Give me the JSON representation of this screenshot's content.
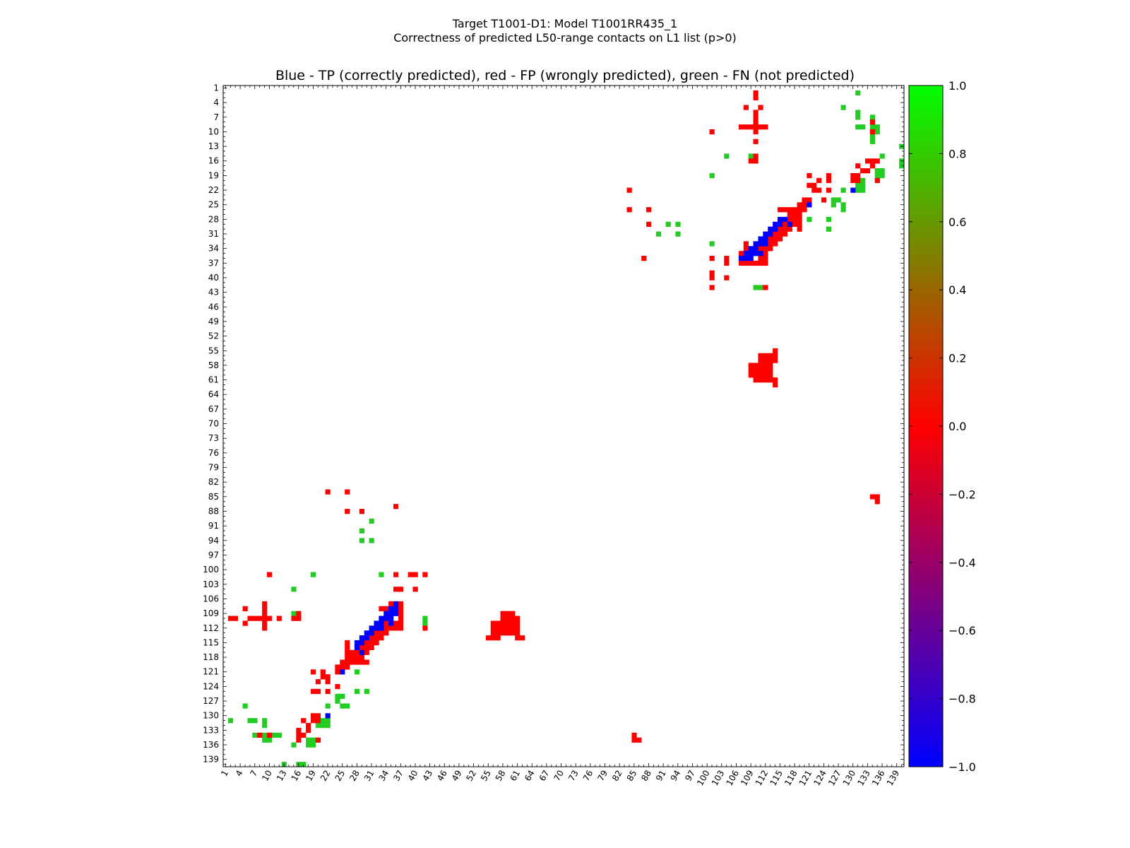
{
  "chart_data": {
    "type": "heatmap",
    "title": "Target T1001-D1: Model T1001RR435_1",
    "subtitle": "Correctness of predicted L50-range contacts on L1 list (p>0)",
    "plot_title": "Blue - TP (correctly predicted), red - FP (wrongly predicted), green - FN (not predicted)",
    "xlabel": "",
    "ylabel": "",
    "n_residues": 140,
    "axis_ticks": [
      1,
      4,
      7,
      10,
      13,
      16,
      19,
      22,
      25,
      28,
      31,
      34,
      37,
      40,
      43,
      46,
      49,
      52,
      55,
      58,
      61,
      64,
      67,
      70,
      73,
      76,
      79,
      82,
      85,
      88,
      91,
      94,
      97,
      100,
      103,
      106,
      109,
      112,
      115,
      118,
      121,
      124,
      127,
      130,
      133,
      136,
      139
    ],
    "y_tick_labels": [
      "1",
      "4",
      "7",
      "10",
      "13",
      "16",
      "19",
      "22",
      "25",
      "28",
      "31",
      "34",
      "37",
      "40",
      "43",
      "46",
      "49",
      "52",
      "55",
      "58",
      "61",
      "64",
      "67",
      "70",
      "73",
      "76",
      "79",
      "82",
      "85",
      "88",
      "91",
      "94",
      "97",
      "100",
      "103",
      "106",
      "109",
      "112",
      "115",
      "118",
      "121",
      "124",
      "127",
      "130",
      "133",
      "136",
      "139"
    ],
    "x_tick_labels": [
      "1",
      "4",
      "7",
      "10",
      "13",
      "16",
      "19",
      "22",
      "25",
      "28",
      "31",
      "34",
      "37",
      "40",
      "43",
      "46",
      "49",
      "52",
      "55",
      "58",
      "61",
      "64",
      "67",
      "70",
      "73",
      "76",
      "79",
      "82",
      "85",
      "88",
      "91",
      "94",
      "97",
      "100",
      "103",
      "106",
      "109",
      "112",
      "115",
      "118",
      "121",
      "124",
      "127",
      "130",
      "133",
      "136",
      "139"
    ],
    "legend": {
      "TP": "blue",
      "FP": "red",
      "FN": "green"
    },
    "colorbar": {
      "range": [
        -1.0,
        1.0
      ],
      "ticks": [
        1.0,
        0.8,
        0.6,
        0.4,
        0.2,
        0.0,
        -0.2,
        -0.4,
        -0.6,
        -0.8,
        -1.0
      ],
      "tick_labels": [
        "1.0",
        "0.8",
        "0.6",
        "0.4",
        "0.2",
        "0.0",
        "−0.2",
        "−0.4",
        "−0.6",
        "−0.8",
        "−1.0"
      ],
      "colors": {
        "top": "#00ff00",
        "middle": "#ff0000",
        "bottom": "#0000ff"
      }
    },
    "colors": {
      "TP": "#0000ff",
      "FP": "#ff0000",
      "FN": "#22cc22"
    },
    "contacts_upper": {
      "TP": [
        [
          34,
          109
        ],
        [
          34,
          110
        ],
        [
          35,
          108
        ],
        [
          35,
          109
        ],
        [
          35,
          110
        ],
        [
          35,
          111
        ],
        [
          36,
          108
        ],
        [
          36,
          109
        ],
        [
          33,
          110
        ],
        [
          33,
          111
        ],
        [
          33,
          112
        ],
        [
          32,
          111
        ],
        [
          32,
          112
        ],
        [
          31,
          112
        ],
        [
          31,
          113
        ],
        [
          30,
          113
        ],
        [
          30,
          114
        ],
        [
          29,
          114
        ],
        [
          29,
          115
        ],
        [
          28,
          115
        ],
        [
          28,
          116
        ],
        [
          29,
          117
        ],
        [
          22,
          130
        ],
        [
          25,
          121
        ],
        [
          36,
          107
        ]
      ],
      "FP": [
        [
          2,
          110
        ],
        [
          3,
          110
        ],
        [
          5,
          108
        ],
        [
          5,
          111
        ],
        [
          6,
          110
        ],
        [
          7,
          110
        ],
        [
          8,
          110
        ],
        [
          9,
          107
        ],
        [
          9,
          108
        ],
        [
          9,
          109
        ],
        [
          9,
          110
        ],
        [
          9,
          111
        ],
        [
          9,
          112
        ],
        [
          10,
          110
        ],
        [
          12,
          110
        ],
        [
          15,
          110
        ],
        [
          10,
          101
        ],
        [
          16,
          109
        ],
        [
          16,
          110
        ],
        [
          20,
          123
        ],
        [
          19,
          125
        ],
        [
          20,
          125
        ],
        [
          21,
          122
        ],
        [
          22,
          122
        ],
        [
          22,
          123
        ],
        [
          22,
          125
        ],
        [
          19,
          130
        ],
        [
          20,
          130
        ],
        [
          20,
          131
        ],
        [
          19,
          131
        ],
        [
          18,
          132
        ],
        [
          18,
          133
        ],
        [
          16,
          133
        ],
        [
          16,
          134
        ],
        [
          22,
          84
        ],
        [
          26,
          84
        ],
        [
          26,
          88
        ],
        [
          29,
          88
        ],
        [
          36,
          87
        ],
        [
          36,
          101
        ],
        [
          36,
          104
        ],
        [
          37,
          104
        ],
        [
          39,
          101
        ],
        [
          40,
          101
        ],
        [
          40,
          104
        ],
        [
          42,
          101
        ],
        [
          42,
          112
        ],
        [
          33,
          108
        ],
        [
          34,
          108
        ],
        [
          35,
          107
        ],
        [
          36,
          107
        ],
        [
          37,
          107
        ],
        [
          37,
          108
        ],
        [
          37,
          109
        ],
        [
          37,
          110
        ],
        [
          37,
          111
        ],
        [
          37,
          112
        ],
        [
          36,
          111
        ],
        [
          36,
          112
        ],
        [
          35,
          112
        ],
        [
          34,
          111
        ],
        [
          34,
          112
        ],
        [
          34,
          113
        ],
        [
          33,
          113
        ],
        [
          33,
          114
        ],
        [
          32,
          113
        ],
        [
          32,
          114
        ],
        [
          32,
          115
        ],
        [
          31,
          114
        ],
        [
          31,
          115
        ],
        [
          31,
          116
        ],
        [
          30,
          115
        ],
        [
          30,
          116
        ],
        [
          30,
          117
        ],
        [
          29,
          116
        ],
        [
          29,
          118
        ],
        [
          28,
          116
        ],
        [
          28,
          117
        ],
        [
          28,
          118
        ],
        [
          28,
          119
        ],
        [
          27,
          117
        ],
        [
          27,
          118
        ],
        [
          27,
          119
        ],
        [
          26,
          115
        ],
        [
          26,
          116
        ],
        [
          26,
          117
        ],
        [
          26,
          118
        ],
        [
          26,
          119
        ],
        [
          26,
          120
        ],
        [
          25,
          119
        ],
        [
          25,
          120
        ],
        [
          24,
          120
        ],
        [
          29,
          119
        ],
        [
          30,
          119
        ],
        [
          55,
          114
        ],
        [
          56,
          111
        ],
        [
          56,
          112
        ],
        [
          56,
          113
        ],
        [
          56,
          114
        ],
        [
          57,
          111
        ],
        [
          57,
          112
        ],
        [
          57,
          113
        ],
        [
          57,
          114
        ],
        [
          58,
          109
        ],
        [
          58,
          110
        ],
        [
          58,
          111
        ],
        [
          58,
          112
        ],
        [
          58,
          113
        ],
        [
          59,
          109
        ],
        [
          59,
          110
        ],
        [
          59,
          111
        ],
        [
          59,
          112
        ],
        [
          59,
          113
        ],
        [
          60,
          109
        ],
        [
          60,
          110
        ],
        [
          60,
          111
        ],
        [
          60,
          112
        ],
        [
          60,
          113
        ],
        [
          61,
          110
        ],
        [
          61,
          111
        ],
        [
          61,
          112
        ],
        [
          61,
          113
        ],
        [
          61,
          114
        ],
        [
          62,
          114
        ],
        [
          85,
          134
        ],
        [
          85,
          135
        ],
        [
          86,
          135
        ],
        [
          19,
          121
        ],
        [
          21,
          121
        ],
        [
          24,
          121
        ],
        [
          24,
          124
        ],
        [
          17,
          131
        ],
        [
          17,
          134
        ],
        [
          8,
          134
        ],
        [
          10,
          134
        ],
        [
          16,
          135
        ],
        [
          20,
          135
        ]
      ],
      "FN": [
        [
          2,
          131
        ],
        [
          5,
          128
        ],
        [
          6,
          131
        ],
        [
          7,
          131
        ],
        [
          7,
          134
        ],
        [
          8,
          134
        ],
        [
          9,
          131
        ],
        [
          9,
          132
        ],
        [
          9,
          134
        ],
        [
          9,
          135
        ],
        [
          10,
          134
        ],
        [
          10,
          135
        ],
        [
          11,
          134
        ],
        [
          12,
          134
        ],
        [
          15,
          104
        ],
        [
          15,
          109
        ],
        [
          15,
          136
        ],
        [
          19,
          101
        ],
        [
          18,
          135
        ],
        [
          18,
          136
        ],
        [
          19,
          135
        ],
        [
          19,
          136
        ],
        [
          20,
          132
        ],
        [
          21,
          132
        ],
        [
          22,
          128
        ],
        [
          22,
          131
        ],
        [
          22,
          132
        ],
        [
          21,
          131
        ],
        [
          24,
          126
        ],
        [
          24,
          127
        ],
        [
          25,
          126
        ],
        [
          25,
          128
        ],
        [
          26,
          128
        ],
        [
          28,
          121
        ],
        [
          28,
          125
        ],
        [
          29,
          92
        ],
        [
          29,
          94
        ],
        [
          30,
          125
        ],
        [
          31,
          90
        ],
        [
          31,
          94
        ],
        [
          33,
          101
        ],
        [
          42,
          110
        ],
        [
          42,
          111
        ],
        [
          16,
          140
        ],
        [
          13,
          140
        ],
        [
          17,
          140
        ]
      ]
    }
  }
}
